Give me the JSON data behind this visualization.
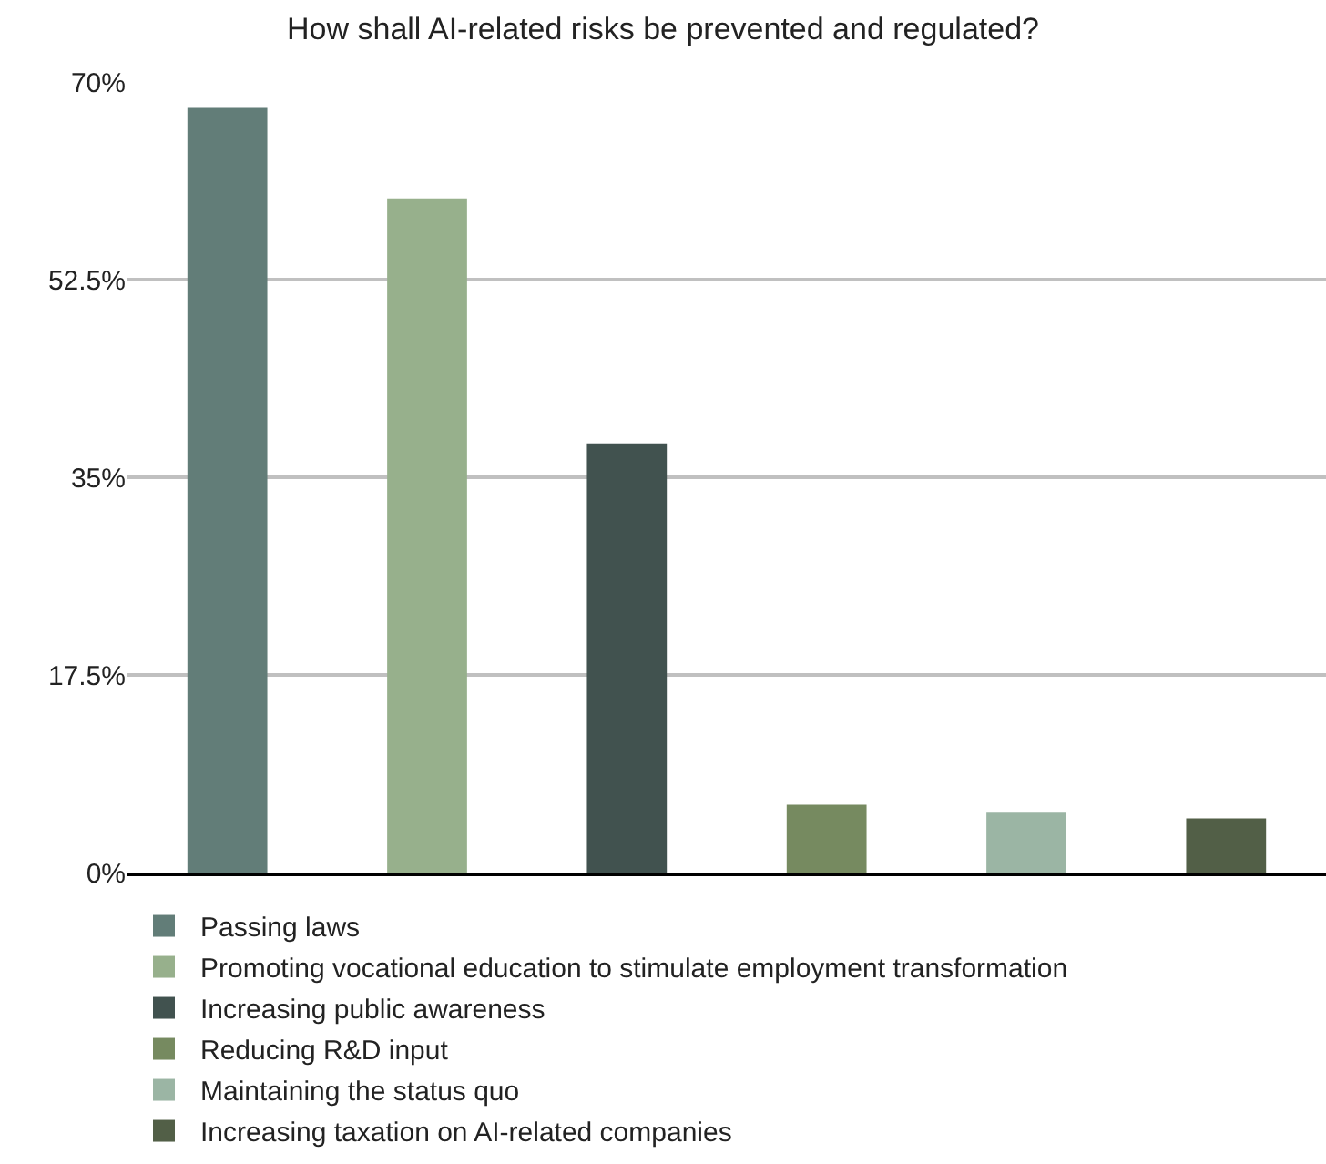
{
  "chart_data": {
    "type": "bar",
    "title": "How shall AI-related risks be prevented and regulated?",
    "categories": [
      null,
      null,
      null,
      null,
      null,
      null
    ],
    "series": [
      {
        "name": "Passing laws",
        "color": "#627d78",
        "values": [
          67.7,
          null,
          null,
          null,
          null,
          null
        ]
      },
      {
        "name": "Promoting vocational education to stimulate employment transformation",
        "color": "#97b08c",
        "values": [
          null,
          59.7,
          null,
          null,
          null,
          null
        ]
      },
      {
        "name": "Increasing public awareness",
        "color": "#41524f",
        "values": [
          null,
          null,
          38.0,
          null,
          null,
          null
        ]
      },
      {
        "name": "Reducing R&D input",
        "color": "#768a60",
        "values": [
          null,
          null,
          null,
          6.0,
          null,
          null
        ]
      },
      {
        "name": "Maintaining the status quo",
        "color": "#9bb5a4",
        "values": [
          null,
          null,
          null,
          null,
          5.3,
          null
        ]
      },
      {
        "name": "Increasing taxation on AI-related companies",
        "color": "#525f47",
        "values": [
          null,
          null,
          null,
          null,
          null,
          4.8
        ]
      }
    ],
    "ylim": [
      0,
      70
    ],
    "yticks": [
      {
        "value": 0,
        "label": "0%"
      },
      {
        "value": 17.5,
        "label": "17.5%"
      },
      {
        "value": 35,
        "label": "35%"
      },
      {
        "value": 52.5,
        "label": "52.5%"
      },
      {
        "value": 70,
        "label": "70%"
      }
    ],
    "grid": "y",
    "legend": "bottom"
  }
}
